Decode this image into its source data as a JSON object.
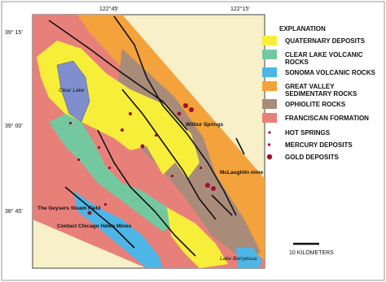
{
  "graticule": {
    "longitudes": [
      "122°45'",
      "122°15'"
    ],
    "latitudes": [
      "39° 15'",
      "39° 00'",
      "38° 45'"
    ]
  },
  "places": {
    "clear_lake": "Clear Lake",
    "wilbur": "Wilbur Springs",
    "mclaughlin": "McLaughlin mine",
    "geysers": "The Geysers Steam Field",
    "mines": "Contact Chicago Helen Mines",
    "berryessa": "Lake Berryessa"
  },
  "legend": {
    "title": "EXPLANATION",
    "units": [
      {
        "label": "QUATERNARY DEPOSITS",
        "color": "#f7ee3a"
      },
      {
        "label": "CLEAR LAKE VOLCANIC ROCKS",
        "color": "#74c8a0"
      },
      {
        "label": "SONOMA VOLCANIC ROCKS",
        "color": "#4db6e6"
      },
      {
        "label": "GREAT VALLEY SEDIMENTARY ROCKS",
        "color": "#f4a23c"
      },
      {
        "label": "OPHIOLITE ROCKS",
        "color": "#a98b7a"
      },
      {
        "label": "FRANCISCAN FORMATION",
        "color": "#e8807a"
      }
    ],
    "symbols": [
      {
        "label": "HOT SPRINGS",
        "shape": "small-dot",
        "color": "#b0102a"
      },
      {
        "label": "MERCURY DEPOSITS",
        "shape": "square",
        "color": "#a0102a"
      },
      {
        "label": "GOLD DEPOSITS",
        "shape": "dot",
        "color": "#a0102a"
      }
    ]
  },
  "scale_bar": "10 KILOMETERS"
}
